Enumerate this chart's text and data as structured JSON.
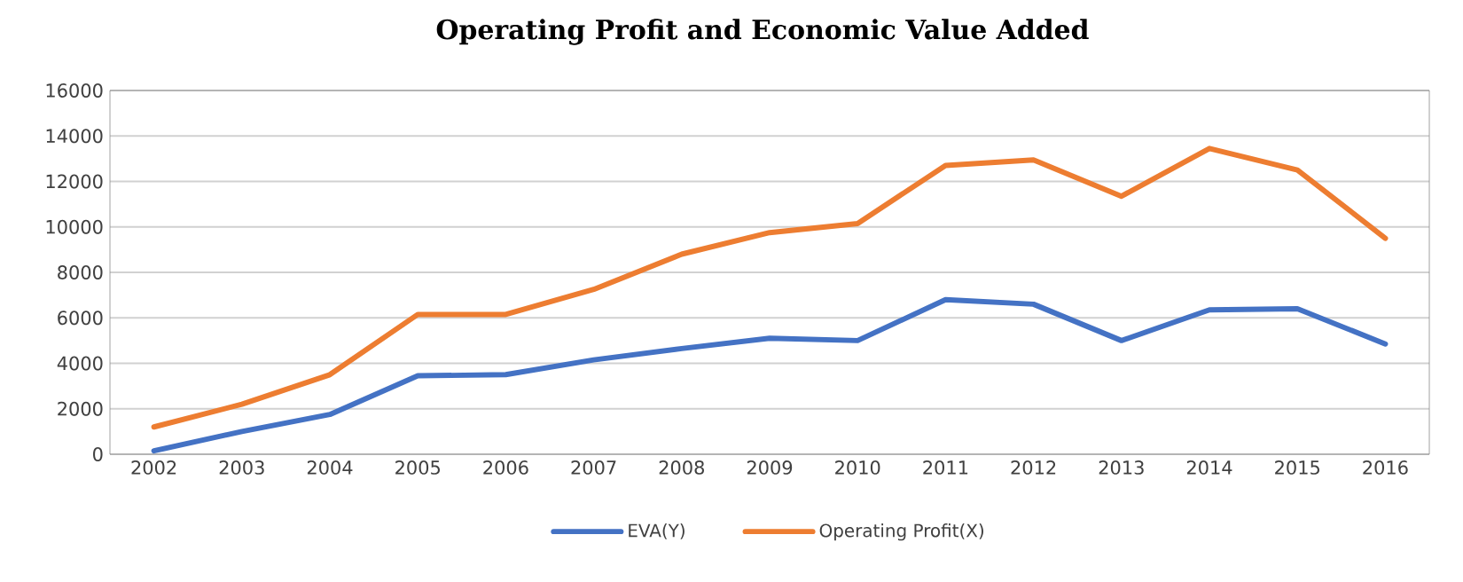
{
  "chart_data": {
    "type": "line",
    "title": "Operating Profit and Economic Value Added",
    "categories": [
      "2002",
      "2003",
      "2004",
      "2005",
      "2006",
      "2007",
      "2008",
      "2009",
      "2010",
      "2011",
      "2012",
      "2013",
      "2014",
      "2015",
      "2016"
    ],
    "series": [
      {
        "name": "EVA(Y)",
        "color": "#4472c4",
        "values": [
          150,
          1000,
          1750,
          3450,
          3500,
          4150,
          4650,
          5100,
          5000,
          6800,
          6600,
          5000,
          6350,
          6400,
          4850
        ]
      },
      {
        "name": "Operating Profit(X)",
        "color": "#ed7d31",
        "values": [
          1200,
          2200,
          3500,
          6150,
          6150,
          7250,
          8800,
          9750,
          10150,
          12700,
          12950,
          11350,
          13450,
          12500,
          9500
        ]
      }
    ],
    "ylim": [
      0,
      16000
    ],
    "yticks": [
      0,
      2000,
      4000,
      6000,
      8000,
      10000,
      12000,
      14000,
      16000
    ],
    "grid": "y",
    "legend": "bottom",
    "marker": "none",
    "line_style": "solid"
  }
}
